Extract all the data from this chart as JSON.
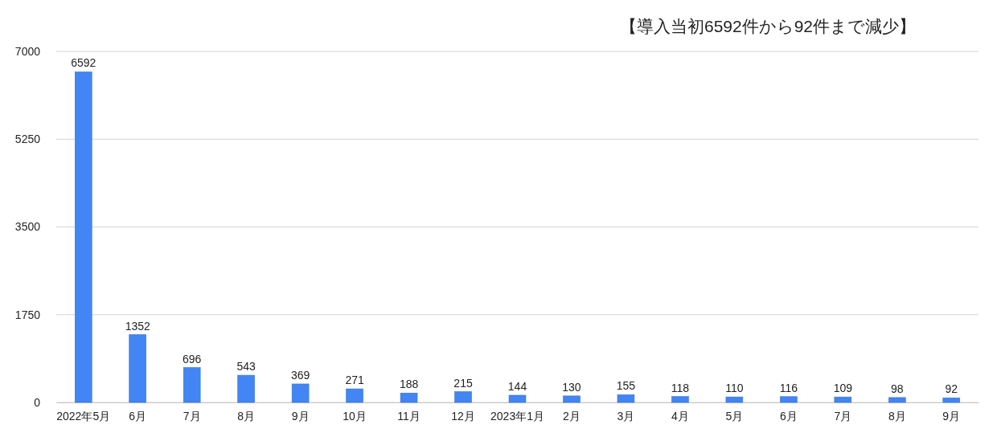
{
  "chart_data": {
    "type": "bar",
    "title": "【導入当初6592件から92件まで減少】",
    "categories": [
      "2022年5月",
      "6月",
      "7月",
      "8月",
      "9月",
      "10月",
      "11月",
      "12月",
      "2023年1月",
      "2月",
      "3月",
      "4月",
      "5月",
      "6月",
      "7月",
      "8月",
      "9月"
    ],
    "values": [
      6592,
      1352,
      696,
      543,
      369,
      271,
      188,
      215,
      144,
      130,
      155,
      118,
      110,
      116,
      109,
      98,
      92
    ],
    "color": "#4285f4",
    "ylim": [
      0,
      7000
    ],
    "yticks": [
      0,
      1750,
      3500,
      5250,
      7000
    ],
    "grid": true,
    "data_labels": true
  }
}
